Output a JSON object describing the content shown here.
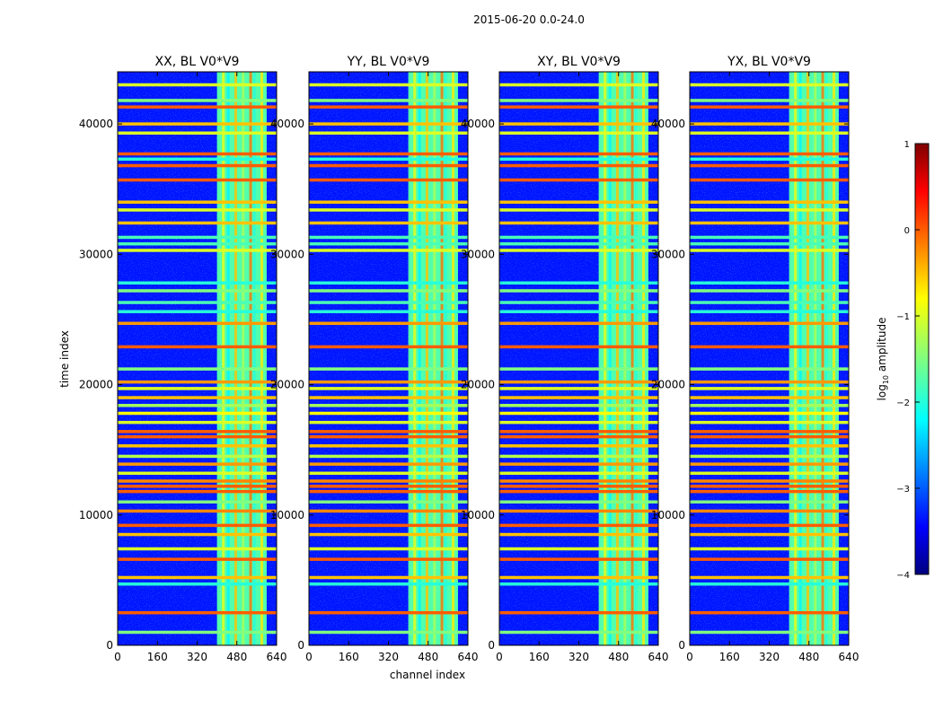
{
  "chart_data": {
    "type": "heatmap",
    "suptitle": "2015-06-20 0.0-24.0",
    "xlabel": "channel index",
    "ylabel": "time index",
    "xlim": [
      0,
      640
    ],
    "ylim": [
      0,
      44000
    ],
    "xticks": [
      0,
      160,
      320,
      480,
      640
    ],
    "yticks": [
      0,
      10000,
      20000,
      30000,
      40000
    ],
    "panels": [
      {
        "title": "XX, BL V0*V9",
        "band_start": 400,
        "band_end": 600
      },
      {
        "title": "YY, BL V0*V9",
        "band_start": 400,
        "band_end": 600
      },
      {
        "title": "XY, BL V0*V9",
        "band_start": 400,
        "band_end": 600
      },
      {
        "title": "YX, BL V0*V9",
        "band_start": 400,
        "band_end": 600
      }
    ],
    "colorbar": {
      "label_main": "log",
      "label_sub": "10",
      "label_rest": " amplitude",
      "min": -4,
      "max": 1,
      "colormap": "jet",
      "ticks": [
        "1",
        "0",
        "−1",
        "−2",
        "−3",
        "−4"
      ]
    },
    "rfi_rows": [
      {
        "t": 1000,
        "level": -1.5
      },
      {
        "t": 2500,
        "level": 0.0
      },
      {
        "t": 4700,
        "level": -2.0
      },
      {
        "t": 5200,
        "level": -0.5
      },
      {
        "t": 6600,
        "level": 0.0
      },
      {
        "t": 7400,
        "level": -1.0
      },
      {
        "t": 8500,
        "level": -0.5
      },
      {
        "t": 9200,
        "level": 0.0
      },
      {
        "t": 10300,
        "level": -0.2
      },
      {
        "t": 11000,
        "level": -1.5
      },
      {
        "t": 11800,
        "level": 0.0
      },
      {
        "t": 12200,
        "level": 0.0
      },
      {
        "t": 12600,
        "level": -0.2
      },
      {
        "t": 13200,
        "level": -1.0
      },
      {
        "t": 13900,
        "level": -0.3
      },
      {
        "t": 14500,
        "level": -1.2
      },
      {
        "t": 15300,
        "level": -0.5
      },
      {
        "t": 16000,
        "level": 0.0
      },
      {
        "t": 16400,
        "level": 0.0
      },
      {
        "t": 17100,
        "level": -1.0
      },
      {
        "t": 17800,
        "level": -0.8
      },
      {
        "t": 18400,
        "level": -1.3
      },
      {
        "t": 19000,
        "level": -0.5
      },
      {
        "t": 19700,
        "level": -1.0
      },
      {
        "t": 20200,
        "level": -0.3
      },
      {
        "t": 21200,
        "level": -1.5
      },
      {
        "t": 22900,
        "level": 0.0
      },
      {
        "t": 24700,
        "level": -0.3
      },
      {
        "t": 25600,
        "level": -2.0
      },
      {
        "t": 26300,
        "level": -1.8
      },
      {
        "t": 27200,
        "level": -1.5
      },
      {
        "t": 27800,
        "level": -2.0
      },
      {
        "t": 30300,
        "level": -1.0
      },
      {
        "t": 30800,
        "level": -1.8
      },
      {
        "t": 31300,
        "level": -1.8
      },
      {
        "t": 32400,
        "level": -0.5
      },
      {
        "t": 33400,
        "level": -1.0
      },
      {
        "t": 34000,
        "level": -0.5
      },
      {
        "t": 35700,
        "level": 0.0
      },
      {
        "t": 36800,
        "level": 0.0
      },
      {
        "t": 37300,
        "level": -2.0
      },
      {
        "t": 37700,
        "level": 0.0
      },
      {
        "t": 39300,
        "level": -1.0
      },
      {
        "t": 40000,
        "level": -0.5
      },
      {
        "t": 41300,
        "level": 0.0
      },
      {
        "t": 41800,
        "level": -1.5
      },
      {
        "t": 43000,
        "level": -1.0
      }
    ]
  }
}
